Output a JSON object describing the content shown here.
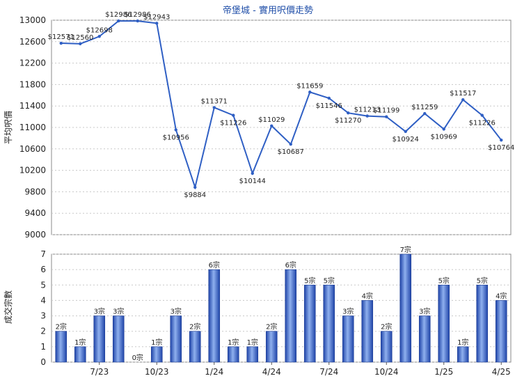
{
  "chart_data": [
    {
      "type": "line",
      "title": "帝堡城 - 實用呎價走勢",
      "ylabel": "平均呎價",
      "ylim": [
        9000,
        13000
      ],
      "yticks": [
        9000,
        9400,
        9800,
        10200,
        10600,
        11000,
        11400,
        11800,
        12200,
        12600,
        13000
      ],
      "grid": true,
      "color": "#2f5fc4",
      "values": [
        12571,
        12560,
        12698,
        12986,
        12986,
        12943,
        10956,
        9884,
        11371,
        11226,
        10144,
        11029,
        10687,
        11659,
        11546,
        11270,
        11213,
        11199,
        10924,
        11259,
        10969,
        11517,
        11226,
        10764
      ],
      "value_labels": [
        "$12571",
        "$12560",
        "$12698",
        "$12986",
        "$12986",
        "$12943",
        "$10956",
        "$9884",
        "$11371",
        "$11226",
        "$10144",
        "$11029",
        "$10687",
        "$11659",
        "$11546",
        "$11270",
        "$11213",
        "$11199",
        "$10924",
        "$11259",
        "$10969",
        "$11517",
        "$11226",
        "$10764"
      ]
    },
    {
      "type": "bar",
      "ylabel": "成交宗數",
      "ylim": [
        0,
        7
      ],
      "yticks": [
        0,
        1,
        2,
        3,
        4,
        5,
        6,
        7
      ],
      "grid": true,
      "color": "#3a63c7",
      "values": [
        2,
        1,
        3,
        3,
        0,
        1,
        3,
        2,
        6,
        1,
        1,
        2,
        6,
        5,
        5,
        3,
        4,
        2,
        7,
        3,
        5,
        1,
        5,
        4
      ],
      "value_labels": [
        "2宗",
        "1宗",
        "3宗",
        "3宗",
        "0宗",
        "1宗",
        "3宗",
        "2宗",
        "6宗",
        "1宗",
        "1宗",
        "2宗",
        "6宗",
        "5宗",
        "5宗",
        "3宗",
        "4宗",
        "2宗",
        "7宗",
        "3宗",
        "5宗",
        "1宗",
        "5宗",
        "4宗"
      ],
      "x_ticks": [
        "7/23",
        "10/23",
        "1/24",
        "4/24",
        "7/24",
        "10/24",
        "1/25",
        "4/25"
      ]
    }
  ]
}
